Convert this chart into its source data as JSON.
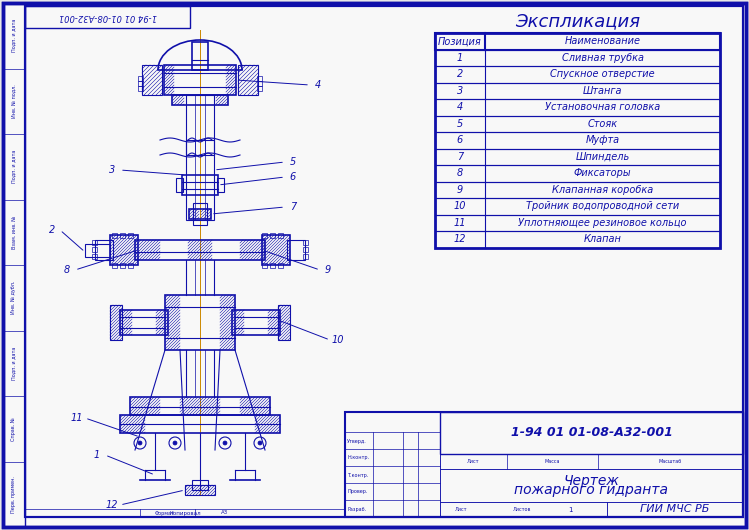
{
  "bg_color": "#e8e8e8",
  "paper_color": "#f8f8f8",
  "border_color": "#1010aa",
  "draw_color": "#1010aa",
  "title_text": "Экспликация",
  "table_headers": [
    "Позиция",
    "Наименование"
  ],
  "table_rows": [
    [
      "1",
      "Сливная трубка"
    ],
    [
      "2",
      "Спускное отверстие"
    ],
    [
      "3",
      "Штанга"
    ],
    [
      "4",
      "Установочная головка"
    ],
    [
      "5",
      "Стояк"
    ],
    [
      "6",
      "Муфта"
    ],
    [
      "7",
      "Шпиндель"
    ],
    [
      "8",
      "Фиксаторы"
    ],
    [
      "9",
      "Клапанная коробка"
    ],
    [
      "10",
      "Тройник водопроводной сети"
    ],
    [
      "11",
      "Уплотняющее резиновое кольцо"
    ],
    [
      "12",
      "Клапан"
    ]
  ],
  "stamp_doc_num": "1-94 01 01-08-А32-001",
  "stamp_title1": "Чертеж",
  "stamp_title2": "пожарного гидранта",
  "stamp_org": "ГИИ МЧС РБ",
  "stamp_format": "А3",
  "corner_text": "1-94 01 01-08-А32-001",
  "left_labels": [
    "Перв. примен.",
    "Справ. №",
    "Подп. и дата",
    "Инв. № дубл.",
    "Взам. инв. №",
    "Подп. и дата",
    "Инв. № подл.",
    "Подп. и дата"
  ],
  "pers_labels": [
    "Разраб.",
    "Провер.",
    "Т.контр.",
    "Н.контр.",
    "Утверд."
  ]
}
